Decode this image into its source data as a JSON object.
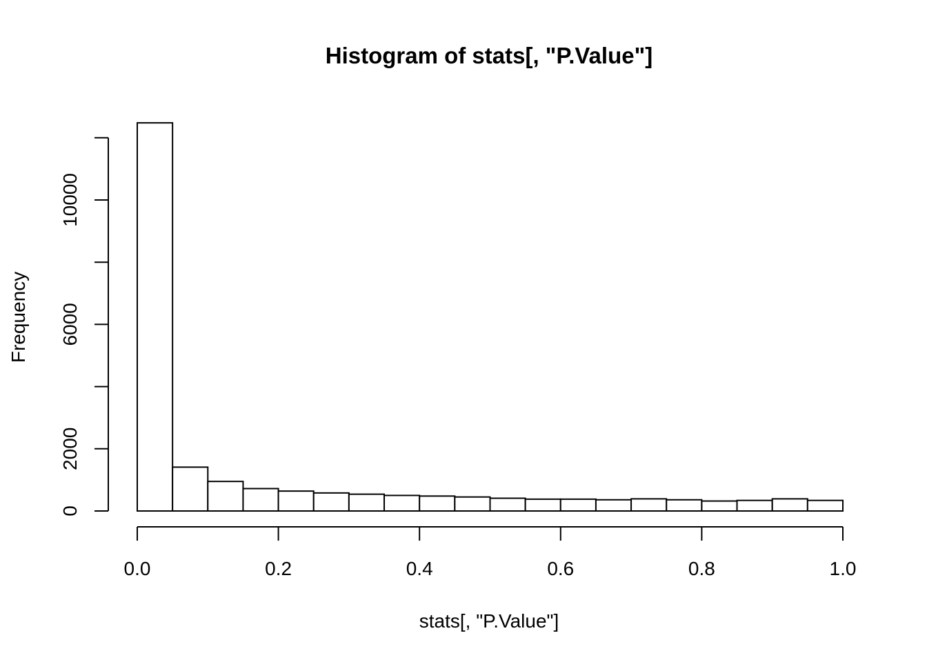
{
  "chart_data": {
    "type": "bar",
    "title": "Histogram of stats[, \"P.Value\"]",
    "xlabel": "stats[, \"P.Value\"]",
    "ylabel": "Frequency",
    "xlim": [
      0,
      1
    ],
    "ylim": [
      0,
      12500
    ],
    "bin_width": 0.05,
    "bins": [
      {
        "x0": 0.0,
        "x1": 0.05,
        "count": 12480
      },
      {
        "x0": 0.05,
        "x1": 0.1,
        "count": 1410
      },
      {
        "x0": 0.1,
        "x1": 0.15,
        "count": 950
      },
      {
        "x0": 0.15,
        "x1": 0.2,
        "count": 720
      },
      {
        "x0": 0.2,
        "x1": 0.25,
        "count": 640
      },
      {
        "x0": 0.25,
        "x1": 0.3,
        "count": 580
      },
      {
        "x0": 0.3,
        "x1": 0.35,
        "count": 540
      },
      {
        "x0": 0.35,
        "x1": 0.4,
        "count": 500
      },
      {
        "x0": 0.4,
        "x1": 0.45,
        "count": 480
      },
      {
        "x0": 0.45,
        "x1": 0.5,
        "count": 450
      },
      {
        "x0": 0.5,
        "x1": 0.55,
        "count": 410
      },
      {
        "x0": 0.55,
        "x1": 0.6,
        "count": 380
      },
      {
        "x0": 0.6,
        "x1": 0.65,
        "count": 380
      },
      {
        "x0": 0.65,
        "x1": 0.7,
        "count": 360
      },
      {
        "x0": 0.7,
        "x1": 0.75,
        "count": 390
      },
      {
        "x0": 0.75,
        "x1": 0.8,
        "count": 360
      },
      {
        "x0": 0.8,
        "x1": 0.85,
        "count": 320
      },
      {
        "x0": 0.85,
        "x1": 0.9,
        "count": 340
      },
      {
        "x0": 0.9,
        "x1": 0.95,
        "count": 390
      },
      {
        "x0": 0.95,
        "x1": 1.0,
        "count": 340
      }
    ],
    "x_ticks": [
      {
        "value": 0.0,
        "label": "0.0"
      },
      {
        "value": 0.2,
        "label": "0.2"
      },
      {
        "value": 0.4,
        "label": "0.4"
      },
      {
        "value": 0.6,
        "label": "0.6"
      },
      {
        "value": 0.8,
        "label": "0.8"
      },
      {
        "value": 1.0,
        "label": "1.0"
      }
    ],
    "y_ticks": [
      {
        "value": 0,
        "label": "0"
      },
      {
        "value": 2000,
        "label": "2000"
      },
      {
        "value": 4000,
        "label": ""
      },
      {
        "value": 6000,
        "label": "6000"
      },
      {
        "value": 8000,
        "label": ""
      },
      {
        "value": 10000,
        "label": "10000"
      },
      {
        "value": 12000,
        "label": ""
      }
    ],
    "grid": false,
    "legend": "none"
  }
}
